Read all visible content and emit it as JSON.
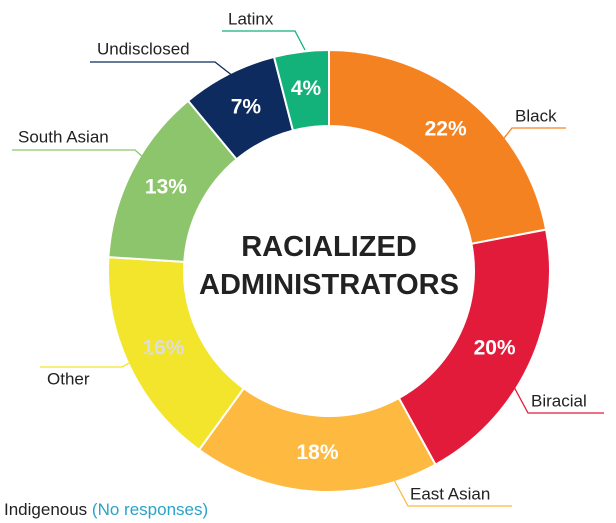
{
  "chart_data": {
    "type": "donut",
    "title": "RACIALIZED ADMINISTRATORS",
    "categories": [
      "Black",
      "Biracial",
      "East Asian",
      "Other",
      "South Asian",
      "Undisclosed",
      "Latinx"
    ],
    "values": [
      22,
      20,
      18,
      16,
      13,
      7,
      4
    ],
    "value_labels": [
      "22%",
      "20%",
      "18%",
      "16%",
      "13%",
      "7%",
      "4%"
    ],
    "colors": [
      "#f58220",
      "#e31b3a",
      "#fdb940",
      "#f2e52b",
      "#8cc56b",
      "#0d2b5e",
      "#13b27a"
    ],
    "label_colors": [
      "#ffffff",
      "#ffffff",
      "#ffffff",
      "#dddddd",
      "#ffffff",
      "#ffffff",
      "#ffffff"
    ],
    "note": {
      "category": "Indigenous",
      "text": "(No responses)"
    }
  }
}
